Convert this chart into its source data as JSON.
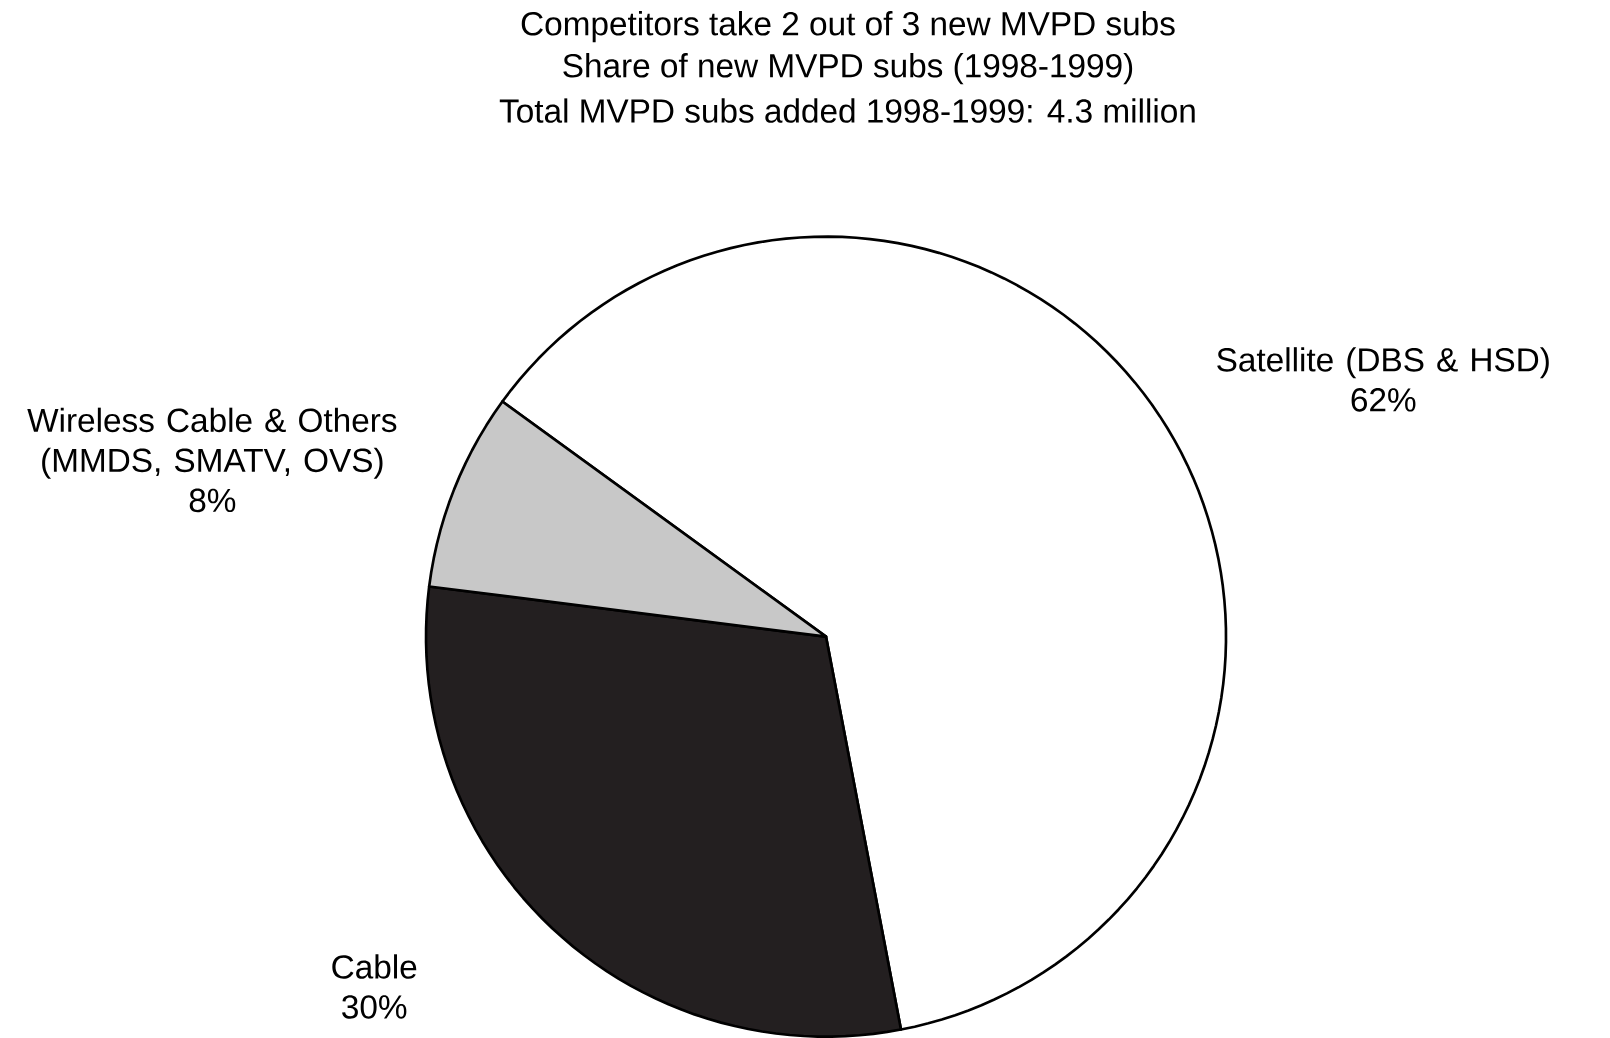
{
  "chart_data": {
    "type": "pie",
    "title": "Competitors take 2 out of 3 new MVPD subs",
    "subtitle": "Share of new MVPD subs (1998-1999)",
    "annotations": [
      "Total MVPD subs added 1998-1999: 4.3 million"
    ],
    "categories": [
      "Satellite (DBS & HSD)",
      "Cable",
      "Wireless Cable & Others (MMDS, SMATV, OVS)"
    ],
    "values": [
      62,
      30,
      8
    ],
    "value_labels": [
      "62%",
      "30%",
      "8%"
    ],
    "colors": [
      "#ffffff",
      "#231f20",
      "#c8c8c8"
    ]
  }
}
